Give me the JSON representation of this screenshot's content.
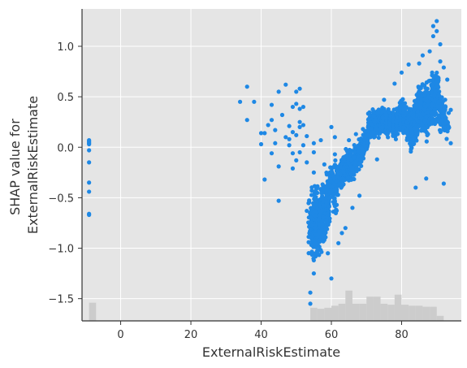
{
  "chart_data": {
    "type": "scatter",
    "title": "",
    "xlabel": "ExternalRiskEstimate",
    "ylabel": [
      "SHAP value for",
      "ExternalRiskEstimate"
    ],
    "xlim": [
      -11,
      97
    ],
    "ylim": [
      -1.72,
      1.37
    ],
    "x_ticks": [
      {
        "value": 0,
        "label": "0"
      },
      {
        "value": 20,
        "label": "20"
      },
      {
        "value": 40,
        "label": "40"
      },
      {
        "value": 60,
        "label": "60"
      },
      {
        "value": 80,
        "label": "80"
      }
    ],
    "y_ticks": [
      {
        "value": 1.0,
        "label": "1.0"
      },
      {
        "value": 0.5,
        "label": "0.5"
      },
      {
        "value": 0.0,
        "label": "0.0"
      },
      {
        "value": -0.5,
        "label": "−0.5"
      },
      {
        "value": -1.0,
        "label": "−1.0"
      },
      {
        "value": -1.5,
        "label": "−1.5"
      }
    ],
    "grid": true,
    "colors": {
      "points": "#1e88e5",
      "background": "#e5e5e5",
      "grid": "#ffffff",
      "histogram": "#cccccc",
      "axis": "#333333"
    },
    "histogram": {
      "baseline": -1.72,
      "bins": [
        {
          "x0": -9,
          "x1": -7,
          "top": -1.54
        },
        {
          "x0": 54,
          "x1": 56,
          "top": -1.59
        },
        {
          "x0": 56,
          "x1": 58,
          "top": -1.6
        },
        {
          "x0": 58,
          "x1": 60,
          "top": -1.59
        },
        {
          "x0": 60,
          "x1": 62,
          "top": -1.57
        },
        {
          "x0": 62,
          "x1": 64,
          "top": -1.55
        },
        {
          "x0": 64,
          "x1": 66,
          "top": -1.42
        },
        {
          "x0": 66,
          "x1": 68,
          "top": -1.55
        },
        {
          "x0": 68,
          "x1": 70,
          "top": -1.55
        },
        {
          "x0": 70,
          "x1": 72,
          "top": -1.48
        },
        {
          "x0": 72,
          "x1": 74,
          "top": -1.48
        },
        {
          "x0": 74,
          "x1": 76,
          "top": -1.55
        },
        {
          "x0": 76,
          "x1": 78,
          "top": -1.56
        },
        {
          "x0": 78,
          "x1": 80,
          "top": -1.46
        },
        {
          "x0": 80,
          "x1": 82,
          "top": -1.56
        },
        {
          "x0": 82,
          "x1": 84,
          "top": -1.57
        },
        {
          "x0": 84,
          "x1": 86,
          "top": -1.57
        },
        {
          "x0": 86,
          "x1": 88,
          "top": -1.58
        },
        {
          "x0": 88,
          "x1": 90,
          "top": -1.58
        },
        {
          "x0": 90,
          "x1": 92,
          "top": -1.67
        }
      ]
    },
    "series": [
      {
        "points": [
          [
            -9,
            0.06
          ],
          [
            -9,
            0.05
          ],
          [
            -9,
            0.04
          ],
          [
            -9,
            0.07
          ],
          [
            -9,
            0.03
          ],
          [
            -9,
            -0.03
          ],
          [
            -9,
            -0.15
          ],
          [
            -9,
            -0.35
          ],
          [
            -9,
            -0.44
          ],
          [
            -9,
            -0.66
          ],
          [
            -9,
            -0.67
          ],
          [
            34,
            0.45
          ],
          [
            36,
            0.6
          ],
          [
            36,
            0.27
          ],
          [
            38,
            0.45
          ],
          [
            40,
            0.14
          ],
          [
            40,
            0.03
          ],
          [
            41,
            0.14
          ],
          [
            41,
            -0.32
          ],
          [
            42,
            0.22
          ],
          [
            43,
            0.42
          ],
          [
            43,
            0.27
          ],
          [
            43,
            -0.06
          ],
          [
            44,
            0.17
          ],
          [
            44,
            0.04
          ],
          [
            45,
            -0.19
          ],
          [
            45,
            0.55
          ],
          [
            45,
            -0.53
          ],
          [
            46,
            0.32
          ],
          [
            47,
            0.62
          ],
          [
            47,
            0.1
          ],
          [
            48,
            0.21
          ],
          [
            48,
            0.08
          ],
          [
            48,
            0.02
          ],
          [
            49,
            0.4
          ],
          [
            49,
            0.15
          ],
          [
            49,
            -0.06
          ],
          [
            49,
            -0.21
          ],
          [
            50,
            0.55
          ],
          [
            50,
            0.43
          ],
          [
            50,
            0.12
          ],
          [
            50,
            -0.13
          ],
          [
            51,
            0.58
          ],
          [
            51,
            0.38
          ],
          [
            51,
            0.25
          ],
          [
            51,
            0.2
          ],
          [
            51,
            -0.05
          ],
          [
            52,
            0.4
          ],
          [
            52,
            0.22
          ],
          [
            52,
            0.02
          ],
          [
            53,
            -0.63
          ],
          [
            53,
            -0.15
          ],
          [
            53,
            0.11
          ],
          [
            54,
            -1.44
          ],
          [
            54,
            -1.55
          ],
          [
            55,
            0.04
          ],
          [
            55,
            -0.05
          ],
          [
            55,
            -0.25
          ],
          [
            55,
            -1.25
          ],
          [
            56,
            -1.05
          ],
          [
            57,
            0.07
          ],
          [
            58,
            -0.17
          ],
          [
            59,
            -1.05
          ],
          [
            60,
            -1.3
          ],
          [
            60,
            0.2
          ],
          [
            61,
            0.1
          ],
          [
            61,
            -0.07
          ],
          [
            62,
            -0.95
          ],
          [
            63,
            -0.85
          ],
          [
            64,
            -0.8
          ],
          [
            65,
            0.07
          ],
          [
            66,
            -0.6
          ],
          [
            67,
            0.13
          ],
          [
            68,
            -0.48
          ],
          [
            69,
            0.18
          ],
          [
            70,
            0.11
          ],
          [
            73,
            -0.12
          ],
          [
            75,
            0.47
          ],
          [
            78,
            0.63
          ],
          [
            80,
            0.74
          ],
          [
            82,
            0.82
          ],
          [
            84,
            -0.4
          ],
          [
            85,
            0.83
          ],
          [
            86,
            0.91
          ],
          [
            87,
            -0.31
          ],
          [
            88,
            0.95
          ],
          [
            89,
            1.1
          ],
          [
            89,
            1.2
          ],
          [
            90,
            1.25
          ],
          [
            90,
            1.15
          ],
          [
            91,
            1.02
          ],
          [
            91,
            0.85
          ],
          [
            92,
            -0.36
          ],
          [
            92,
            0.79
          ],
          [
            93,
            0.25
          ],
          [
            93,
            0.67
          ],
          [
            94,
            0.04
          ],
          [
            94,
            0.37
          ]
        ],
        "clusters": [
          {
            "x": 54,
            "lo": -1.1,
            "hi": -0.35,
            "n": 55
          },
          {
            "x": 55,
            "lo": -1.2,
            "hi": -0.3,
            "n": 75
          },
          {
            "x": 56,
            "lo": -1.15,
            "hi": -0.3,
            "n": 80
          },
          {
            "x": 57,
            "lo": -1.1,
            "hi": -0.35,
            "n": 75
          },
          {
            "x": 58,
            "lo": -1.05,
            "hi": -0.3,
            "n": 70
          },
          {
            "x": 59,
            "lo": -0.95,
            "hi": -0.2,
            "n": 65
          },
          {
            "x": 60,
            "lo": -0.6,
            "hi": -0.1,
            "n": 55
          },
          {
            "x": 61,
            "lo": -0.75,
            "hi": -0.05,
            "n": 50
          },
          {
            "x": 62,
            "lo": -0.55,
            "hi": -0.05,
            "n": 50
          },
          {
            "x": 63,
            "lo": -0.45,
            "hi": -0.05,
            "n": 55
          },
          {
            "x": 64,
            "lo": -0.4,
            "hi": 0.0,
            "n": 60
          },
          {
            "x": 65,
            "lo": -0.4,
            "hi": 0.02,
            "n": 65
          },
          {
            "x": 66,
            "lo": -0.35,
            "hi": 0.05,
            "n": 65
          },
          {
            "x": 67,
            "lo": -0.3,
            "hi": 0.08,
            "n": 60
          },
          {
            "x": 68,
            "lo": -0.25,
            "hi": 0.1,
            "n": 60
          },
          {
            "x": 69,
            "lo": -0.15,
            "hi": 0.15,
            "n": 55
          },
          {
            "x": 70,
            "lo": -0.05,
            "hi": 0.2,
            "n": 55
          },
          {
            "x": 71,
            "lo": 0.05,
            "hi": 0.38,
            "n": 65
          },
          {
            "x": 72,
            "lo": 0.05,
            "hi": 0.4,
            "n": 70
          },
          {
            "x": 73,
            "lo": 0.08,
            "hi": 0.42,
            "n": 70
          },
          {
            "x": 74,
            "lo": 0.1,
            "hi": 0.4,
            "n": 70
          },
          {
            "x": 75,
            "lo": 0.1,
            "hi": 0.42,
            "n": 70
          },
          {
            "x": 76,
            "lo": 0.05,
            "hi": 0.45,
            "n": 70
          },
          {
            "x": 77,
            "lo": 0.1,
            "hi": 0.4,
            "n": 65
          },
          {
            "x": 78,
            "lo": 0.05,
            "hi": 0.42,
            "n": 70
          },
          {
            "x": 79,
            "lo": 0.1,
            "hi": 0.45,
            "n": 70
          },
          {
            "x": 80,
            "lo": 0.1,
            "hi": 0.55,
            "n": 75
          },
          {
            "x": 81,
            "lo": 0.05,
            "hi": 0.5,
            "n": 70
          },
          {
            "x": 82,
            "lo": -0.05,
            "hi": 0.45,
            "n": 65
          },
          {
            "x": 83,
            "lo": -0.15,
            "hi": 0.5,
            "n": 65
          },
          {
            "x": 84,
            "lo": 0.0,
            "hi": 0.6,
            "n": 70
          },
          {
            "x": 85,
            "lo": 0.1,
            "hi": 0.65,
            "n": 70
          },
          {
            "x": 86,
            "lo": 0.05,
            "hi": 0.7,
            "n": 70
          },
          {
            "x": 87,
            "lo": 0.0,
            "hi": 0.68,
            "n": 70
          },
          {
            "x": 88,
            "lo": 0.05,
            "hi": 0.75,
            "n": 65
          },
          {
            "x": 89,
            "lo": 0.1,
            "hi": 0.85,
            "n": 60
          },
          {
            "x": 90,
            "lo": 0.15,
            "hi": 0.9,
            "n": 55
          },
          {
            "x": 91,
            "lo": 0.1,
            "hi": 0.6,
            "n": 45
          },
          {
            "x": 92,
            "lo": 0.05,
            "hi": 0.6,
            "n": 35
          },
          {
            "x": 93,
            "lo": 0.05,
            "hi": 0.4,
            "n": 20
          }
        ]
      }
    ]
  }
}
